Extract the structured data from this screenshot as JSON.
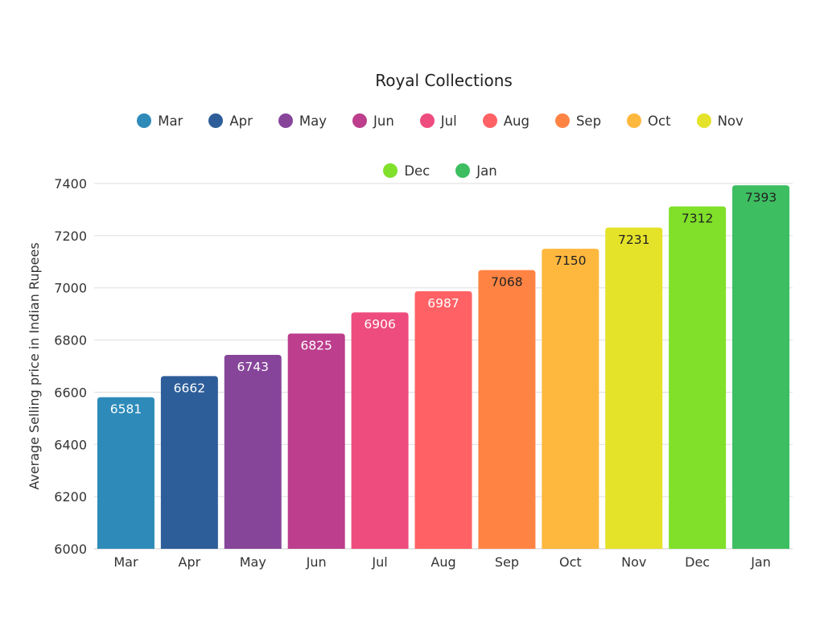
{
  "chart_data": {
    "type": "bar",
    "title": "Royal Collections",
    "xlabel": "",
    "ylabel": "Average Selling price in Indian Rupees",
    "categories": [
      "Mar",
      "Apr",
      "May",
      "Jun",
      "Jul",
      "Aug",
      "Sep",
      "Oct",
      "Nov",
      "Dec",
      "Jan"
    ],
    "values": [
      6581,
      6662,
      6743,
      6825,
      6906,
      6987,
      7068,
      7150,
      7231,
      7312,
      7393
    ],
    "colors": [
      "#2E8BB9",
      "#2E5E99",
      "#87459A",
      "#BC3E8C",
      "#EE4C7E",
      "#FF6165",
      "#FF8444",
      "#FFB83E",
      "#E5E22A",
      "#80E02A",
      "#3CBE61"
    ],
    "label_colors": [
      "#ffffff",
      "#ffffff",
      "#ffffff",
      "#ffffff",
      "#ffffff",
      "#ffffff",
      "#222222",
      "#222222",
      "#222222",
      "#222222",
      "#222222"
    ],
    "ylim": [
      6000,
      7400
    ],
    "yticks": [
      "6000",
      "6200",
      "6400",
      "6600",
      "6800",
      "7000",
      "7200",
      "7400"
    ],
    "grid": true,
    "legend_position": "top"
  }
}
